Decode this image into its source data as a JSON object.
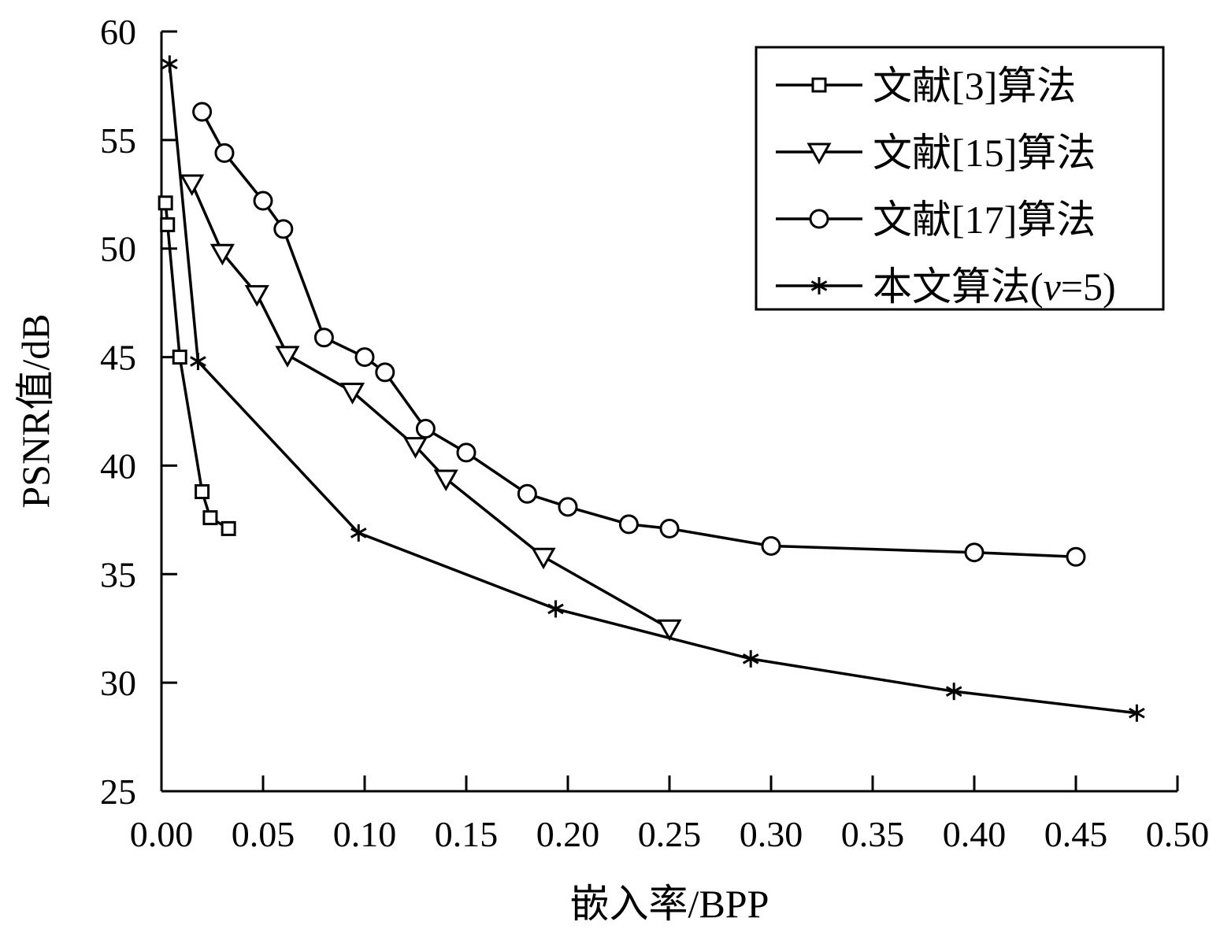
{
  "chart_data": {
    "type": "line",
    "title": "",
    "xlabel": "嵌入率/BPP",
    "ylabel": "PSNR值/dB",
    "xlim": [
      0,
      0.5
    ],
    "ylim": [
      25,
      60
    ],
    "xticks": [
      0,
      0.05,
      0.1,
      0.15,
      0.2,
      0.25,
      0.3,
      0.35,
      0.4,
      0.45,
      0.5
    ],
    "xtick_labels": [
      "0.00",
      "0.05",
      "0.10",
      "0.15",
      "0.20",
      "0.25",
      "0.30",
      "0.35",
      "0.40",
      "0.45",
      "0.50"
    ],
    "yticks": [
      25,
      30,
      35,
      40,
      45,
      50,
      55,
      60
    ],
    "ytick_labels": [
      "25",
      "30",
      "35",
      "40",
      "45",
      "50",
      "55",
      "60"
    ],
    "grid": false,
    "legend_position": "top-right",
    "series": [
      {
        "name": "文献[3]算法",
        "marker": "square",
        "x": [
          0.002,
          0.003,
          0.009,
          0.02,
          0.024,
          0.033
        ],
        "y": [
          52.1,
          51.1,
          45.0,
          38.8,
          37.6,
          37.1
        ]
      },
      {
        "name": "文献[15]算法",
        "marker": "triangle-down",
        "x": [
          0.015,
          0.03,
          0.047,
          0.062,
          0.094,
          0.125,
          0.14,
          0.188,
          0.25
        ],
        "y": [
          53.0,
          49.8,
          47.9,
          45.1,
          43.4,
          40.9,
          39.4,
          35.8,
          32.5
        ]
      },
      {
        "name": "文献[17]算法",
        "marker": "circle",
        "x": [
          0.02,
          0.031,
          0.05,
          0.06,
          0.08,
          0.1,
          0.11,
          0.13,
          0.15,
          0.18,
          0.2,
          0.23,
          0.25,
          0.3,
          0.4,
          0.45
        ],
        "y": [
          56.3,
          54.4,
          52.2,
          50.9,
          45.9,
          45.0,
          44.3,
          41.7,
          40.6,
          38.7,
          38.1,
          37.3,
          37.1,
          36.3,
          36.0,
          35.8
        ]
      },
      {
        "name": "本文算法(v=5)",
        "name_parts": [
          "本文算法(",
          "v",
          "=5)"
        ],
        "marker": "asterisk",
        "x": [
          0.004,
          0.018,
          0.097,
          0.194,
          0.29,
          0.39,
          0.48
        ],
        "y": [
          58.5,
          44.8,
          36.9,
          33.4,
          31.1,
          29.6,
          28.6
        ]
      }
    ]
  }
}
